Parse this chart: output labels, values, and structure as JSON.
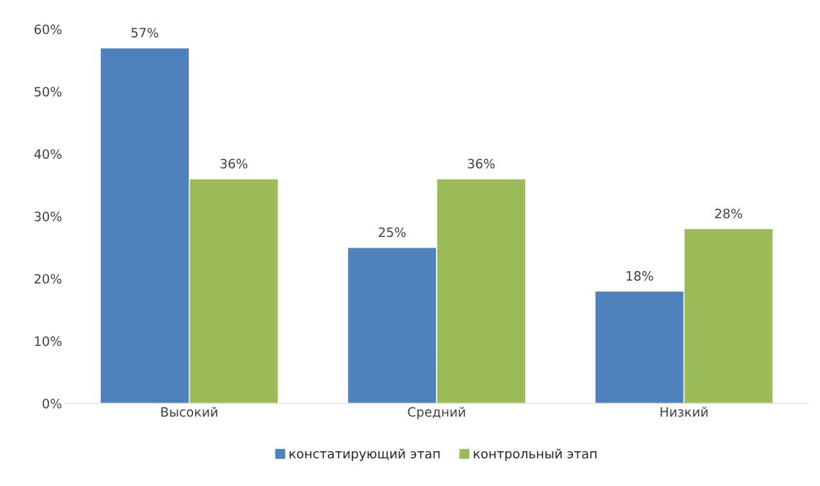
{
  "chart_data": {
    "type": "bar",
    "categories": [
      "Высокий",
      "Средний",
      "Низкий"
    ],
    "series": [
      {
        "name": "констатирующий этап",
        "color": "#4f81bd",
        "values": [
          57,
          25,
          18
        ],
        "value_labels": [
          "57%",
          "25%",
          "18%"
        ]
      },
      {
        "name": "контрольный этап",
        "color": "#9bbb59",
        "values": [
          36,
          36,
          28
        ],
        "value_labels": [
          "36%",
          "36%",
          "28%"
        ]
      }
    ],
    "ylim": [
      0,
      60
    ],
    "yticks": [
      {
        "value": 0,
        "label": "0%"
      },
      {
        "value": 10,
        "label": "10%"
      },
      {
        "value": 20,
        "label": "20%"
      },
      {
        "value": 30,
        "label": "30%"
      },
      {
        "value": 40,
        "label": "40%"
      },
      {
        "value": 50,
        "label": "50%"
      },
      {
        "value": 60,
        "label": "60%"
      }
    ],
    "grid": false,
    "legend": "bottom"
  }
}
